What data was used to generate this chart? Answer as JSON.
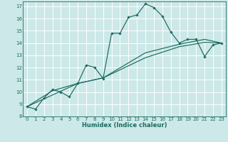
{
  "xlabel": "Humidex (Indice chaleur)",
  "bg_color": "#cce8e8",
  "grid_color": "#ffffff",
  "line_color": "#1a6b60",
  "xlim": [
    -0.5,
    23.5
  ],
  "ylim": [
    8,
    17.4
  ],
  "xticks": [
    0,
    1,
    2,
    3,
    4,
    5,
    6,
    7,
    8,
    9,
    10,
    11,
    12,
    13,
    14,
    15,
    16,
    17,
    18,
    19,
    20,
    21,
    22,
    23
  ],
  "yticks": [
    8,
    9,
    10,
    11,
    12,
    13,
    14,
    15,
    16,
    17
  ],
  "line1_x": [
    0,
    1,
    2,
    3,
    4,
    5,
    6,
    7,
    8,
    9,
    10,
    11,
    12,
    13,
    14,
    15,
    16,
    17,
    18,
    19,
    20,
    21,
    22,
    23
  ],
  "line1_y": [
    8.8,
    8.6,
    9.5,
    10.2,
    10.0,
    9.6,
    10.7,
    12.2,
    12.0,
    11.1,
    14.8,
    14.8,
    16.1,
    16.3,
    17.2,
    16.9,
    16.2,
    14.9,
    14.0,
    14.3,
    14.3,
    12.9,
    13.85,
    14.0
  ],
  "line2_x": [
    0,
    6,
    9,
    14,
    18,
    21,
    23
  ],
  "line2_y": [
    8.8,
    10.7,
    11.15,
    13.2,
    13.9,
    14.3,
    14.0
  ],
  "line3_x": [
    0,
    3,
    6,
    9,
    14,
    18,
    21,
    23
  ],
  "line3_y": [
    8.8,
    10.1,
    10.7,
    11.15,
    12.8,
    13.7,
    14.05,
    14.0
  ]
}
